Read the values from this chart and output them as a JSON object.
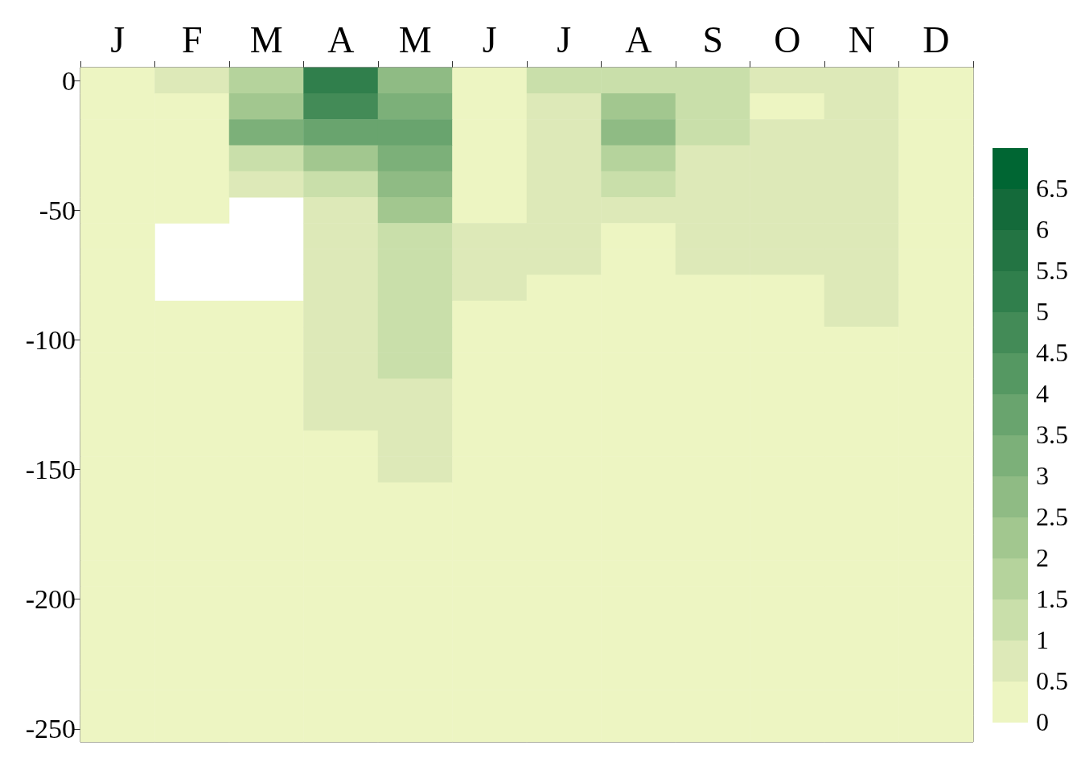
{
  "chart_data": {
    "type": "heatmap",
    "categories": [
      "J",
      "F",
      "M",
      "A",
      "M",
      "J",
      "J",
      "A",
      "S",
      "O",
      "N",
      "D"
    ],
    "y_categories": [
      "0",
      null,
      null,
      null,
      null,
      "-50",
      null,
      null,
      null,
      null,
      "-100",
      null,
      null,
      null,
      null,
      "-150",
      null,
      null,
      null,
      null,
      "-200",
      null,
      null,
      null,
      null,
      "-250"
    ],
    "clim": [
      0,
      7
    ],
    "cticks": [
      0,
      0.5,
      1,
      1.5,
      2,
      2.5,
      3,
      3.5,
      4,
      4.5,
      5,
      5.5,
      6,
      6.5
    ],
    "colors": [
      "#edf5c2",
      "#dde9b8",
      "#c9dfaa",
      "#b5d39c",
      "#a2c78f",
      "#8fbb84",
      "#7cb079",
      "#69a46e",
      "#559862",
      "#438b57",
      "#307f4c",
      "#237443",
      "#146a3a",
      "#006633"
    ],
    "cells": [
      [
        0.2,
        0.7,
        2,
        5.5,
        3,
        0.3,
        1.2,
        1.5,
        1.5,
        0.7,
        0.6,
        0.2
      ],
      [
        0.2,
        0.3,
        2.5,
        5,
        3.5,
        0.3,
        0.7,
        2.5,
        1.2,
        0.3,
        0.6,
        0.2
      ],
      [
        0.2,
        0.2,
        3.5,
        4,
        4,
        0.3,
        0.7,
        3,
        1.2,
        0.7,
        0.6,
        0.2
      ],
      [
        0.2,
        0.2,
        1.5,
        2.5,
        3.5,
        0.3,
        0.7,
        2,
        0.7,
        0.7,
        0.6,
        0.2
      ],
      [
        0.2,
        0.2,
        0.7,
        1.5,
        3,
        0.3,
        0.7,
        1.2,
        0.7,
        0.7,
        0.6,
        0.2
      ],
      [
        0.2,
        0.2,
        null,
        1,
        2.5,
        0.3,
        0.7,
        0.7,
        0.7,
        0.7,
        0.6,
        0.2
      ],
      [
        0.2,
        null,
        null,
        0.7,
        1.5,
        0.7,
        0.7,
        0.3,
        0.7,
        0.7,
        0.6,
        0.2
      ],
      [
        0.2,
        null,
        null,
        0.7,
        1.2,
        0.7,
        0.7,
        0.2,
        0.7,
        0.7,
        0.6,
        0.2
      ],
      [
        0.2,
        null,
        null,
        0.7,
        1.2,
        0.7,
        0.3,
        0.2,
        0.2,
        0.2,
        0.6,
        0.2
      ],
      [
        0.2,
        0.2,
        0.2,
        0.7,
        1.5,
        0.4,
        0.2,
        0.2,
        0.2,
        0.2,
        0.6,
        0.2
      ],
      [
        0.2,
        0.2,
        0.2,
        0.7,
        1.5,
        0.2,
        0.2,
        0.2,
        0.2,
        0.2,
        0.2,
        0.2
      ],
      [
        0.2,
        0.2,
        0.2,
        0.7,
        1.2,
        0.2,
        0.2,
        0.2,
        0.2,
        0.2,
        0.2,
        0.2
      ],
      [
        0.2,
        0.2,
        0.2,
        0.7,
        0.7,
        0.2,
        0.2,
        0.2,
        0.2,
        0.2,
        0.2,
        0.2
      ],
      [
        0.2,
        0.2,
        0.2,
        0.6,
        0.7,
        0.2,
        0.2,
        0.2,
        0.2,
        0.2,
        0.2,
        0.2
      ],
      [
        0.2,
        0.2,
        0.2,
        0.3,
        0.7,
        0.2,
        0.2,
        0.2,
        0.2,
        0.2,
        0.2,
        0.2
      ],
      [
        0.2,
        0.2,
        0.2,
        0.2,
        0.6,
        0.2,
        0.2,
        0.2,
        0.2,
        0.2,
        0.2,
        0.2
      ],
      [
        0.2,
        0.2,
        0.2,
        0.2,
        0.2,
        0.2,
        0.2,
        0.2,
        0.2,
        0.2,
        0.2,
        0.2
      ],
      [
        0.2,
        0.2,
        0.2,
        0.2,
        0.2,
        0.2,
        0.2,
        0.2,
        0.2,
        0.2,
        0.2,
        0.2
      ],
      [
        0.2,
        0.2,
        0.2,
        0.2,
        0.2,
        0.2,
        0.2,
        0.2,
        0.2,
        0.2,
        0.2,
        0.2
      ],
      [
        0.2,
        0.2,
        0.2,
        0.2,
        0.2,
        0.2,
        0.2,
        0.2,
        0.2,
        0.2,
        0.2,
        0.2
      ],
      [
        0.2,
        0.2,
        0.2,
        0.2,
        0.2,
        0.2,
        0.2,
        0.2,
        0.2,
        0.2,
        0.2,
        0.2
      ],
      [
        0.2,
        0.2,
        0.2,
        0.2,
        0.2,
        0.2,
        0.2,
        0.2,
        0.2,
        0.2,
        0.2,
        0.2
      ],
      [
        0.2,
        0.2,
        0.2,
        0.2,
        0.2,
        0.2,
        0.2,
        0.2,
        0.2,
        0.2,
        0.2,
        0.2
      ],
      [
        0.2,
        0.2,
        0.2,
        0.2,
        0.2,
        0.2,
        0.2,
        0.2,
        0.2,
        0.2,
        0.2,
        0.2
      ],
      [
        0.2,
        0.2,
        0.2,
        0.2,
        0.2,
        0.2,
        0.2,
        0.2,
        0.2,
        0.2,
        0.2,
        0.2
      ],
      [
        0.2,
        0.2,
        0.2,
        0.2,
        0.2,
        0.2,
        0.2,
        0.2,
        0.2,
        0.2,
        0.2,
        0.2
      ]
    ]
  }
}
